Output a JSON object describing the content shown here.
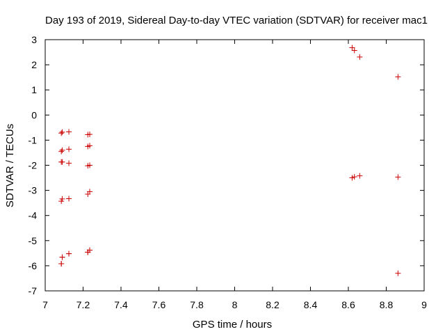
{
  "chart_data": {
    "type": "scatter",
    "title": "Day 193 of 2019, Sidereal Day-to-day VTEC variation (SDTVAR) for receiver mac1",
    "xlabel": "GPS time / hours",
    "ylabel": "SDTVAR / TECUs",
    "xlim": [
      7,
      9
    ],
    "ylim": [
      -7,
      3
    ],
    "xticks": [
      "7",
      "7.2",
      "7.4",
      "7.6",
      "7.8",
      "8",
      "8.2",
      "8.4",
      "8.6",
      "8.8",
      "9"
    ],
    "yticks": [
      "3",
      "2",
      "1",
      "0",
      "-1",
      "-2",
      "-3",
      "-4",
      "-5",
      "-6",
      "-7"
    ],
    "grid": false,
    "marker": "+",
    "color": "#cc0000",
    "series": [
      {
        "name": "SDTVAR",
        "x": [
          7.085,
          7.09,
          7.125,
          7.225,
          7.235,
          7.085,
          7.09,
          7.125,
          7.225,
          7.235,
          7.085,
          7.09,
          7.125,
          7.225,
          7.235,
          7.085,
          7.09,
          7.125,
          7.225,
          7.235,
          7.085,
          7.09,
          7.125,
          7.225,
          7.235,
          7.085,
          7.09,
          7.125,
          7.225,
          7.235,
          8.62,
          8.632,
          8.66,
          8.862,
          8.62,
          8.632,
          8.66,
          8.862,
          8.862
        ],
        "y": [
          -0.72,
          -0.68,
          -0.67,
          -0.78,
          -0.77,
          -1.45,
          -1.4,
          -1.36,
          -1.25,
          -1.22,
          -1.87,
          -1.87,
          -1.92,
          -2.02,
          -2.0,
          -3.43,
          -3.34,
          -3.33,
          -3.15,
          -3.05,
          -5.92,
          -5.66,
          -5.52,
          -5.46,
          -5.38,
          -5.92,
          -5.66,
          -5.52,
          -5.46,
          -5.38,
          2.68,
          2.57,
          2.31,
          1.52,
          -2.5,
          -2.46,
          -2.42,
          -2.47,
          -6.3
        ]
      }
    ]
  }
}
